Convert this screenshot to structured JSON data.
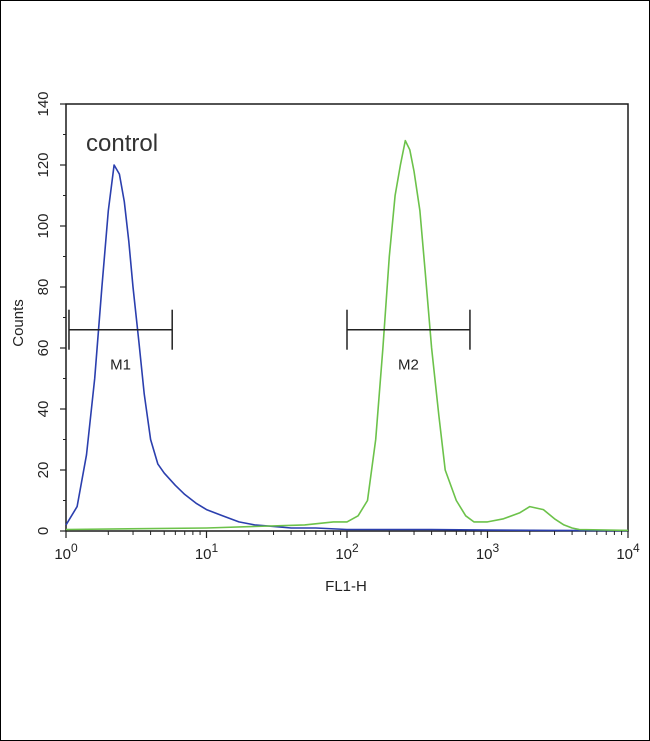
{
  "chart_data": {
    "type": "line",
    "title": "",
    "xlabel": "FL1-H",
    "ylabel": "Counts",
    "x_scale": "log",
    "xlim": [
      1,
      10000
    ],
    "ylim": [
      0,
      140
    ],
    "x_ticks": [
      {
        "value": 1,
        "base": "10",
        "exp": "0"
      },
      {
        "value": 10,
        "base": "10",
        "exp": "1"
      },
      {
        "value": 100,
        "base": "10",
        "exp": "2"
      },
      {
        "value": 1000,
        "base": "10",
        "exp": "3"
      },
      {
        "value": 10000,
        "base": "10",
        "exp": "4"
      }
    ],
    "y_ticks": [
      0,
      20,
      40,
      60,
      80,
      100,
      120,
      140
    ],
    "grid": false,
    "annotation": "control",
    "series": [
      {
        "color": "#2b3fae",
        "x": [
          1.0,
          1.2,
          1.4,
          1.6,
          1.8,
          2.0,
          2.2,
          2.4,
          2.6,
          2.8,
          3.0,
          3.3,
          3.6,
          4.0,
          4.5,
          5.0,
          6.0,
          7.0,
          8.5,
          10,
          13,
          17,
          22,
          30,
          40,
          60,
          100,
          200,
          400,
          1000,
          3000,
          10000
        ],
        "y": [
          2,
          8,
          25,
          50,
          80,
          105,
          120,
          117,
          108,
          95,
          80,
          62,
          45,
          30,
          22,
          19,
          15,
          12,
          9,
          7,
          5,
          3,
          2,
          1.5,
          1,
          1,
          0.5,
          0.5,
          0.5,
          0.3,
          0.2,
          0.1
        ]
      },
      {
        "color": "#6cc24a",
        "x": [
          1.0,
          10,
          50,
          80,
          100,
          120,
          140,
          160,
          180,
          200,
          220,
          240,
          260,
          280,
          300,
          330,
          360,
          400,
          450,
          500,
          600,
          700,
          800,
          1000,
          1300,
          1700,
          2000,
          2500,
          3000,
          3500,
          4000,
          4500,
          10000
        ],
        "y": [
          0.5,
          1,
          2,
          3,
          3,
          5,
          10,
          30,
          60,
          90,
          110,
          120,
          128,
          125,
          118,
          105,
          85,
          60,
          38,
          20,
          10,
          5,
          3,
          3,
          4,
          6,
          8,
          7,
          4,
          2,
          1,
          0.5,
          0.2
        ]
      }
    ],
    "markers": [
      {
        "label": "M1",
        "x_start": 1.05,
        "x_end": 5.7,
        "y": 66
      },
      {
        "label": "M2",
        "x_start": 100,
        "x_end": 750,
        "y": 66
      }
    ]
  }
}
